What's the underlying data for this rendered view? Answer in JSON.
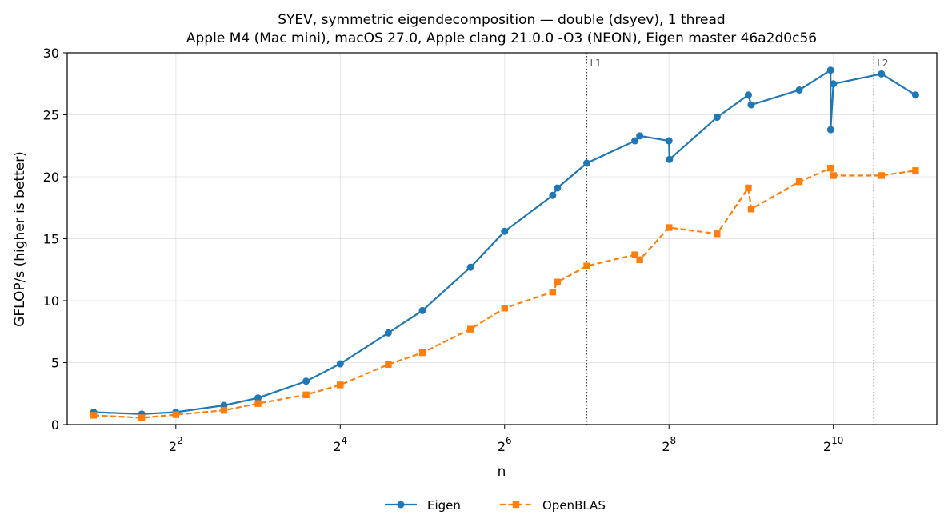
{
  "chart_data": {
    "type": "line",
    "title": "SYEV, symmetric eigendecomposition — double (dsyev), 1 thread",
    "subtitle": "Apple M4 (Mac mini), macOS 27.0, Apple clang 21.0.0 -O3 (NEON), Eigen master 46a2d0c56",
    "xlabel": "n",
    "ylabel": "GFLOP/s (higher is better)",
    "xscale": "log2",
    "xlim": [
      1.6,
      2450
    ],
    "ylim": [
      0,
      30
    ],
    "xticks": [
      {
        "value": 4,
        "base": "2",
        "exp": "2"
      },
      {
        "value": 16,
        "base": "2",
        "exp": "4"
      },
      {
        "value": 64,
        "base": "2",
        "exp": "6"
      },
      {
        "value": 256,
        "base": "2",
        "exp": "8"
      },
      {
        "value": 1024,
        "base": "2",
        "exp": "10"
      }
    ],
    "yticks": [
      0,
      5,
      10,
      15,
      20,
      25,
      30
    ],
    "grid": true,
    "legend": "bottom-center",
    "vlines": [
      {
        "label": "L1",
        "x": 128
      },
      {
        "label": "L2",
        "x": 1440
      }
    ],
    "series": [
      {
        "name": "Eigen",
        "color": "#1f77b4",
        "marker": "circle",
        "linestyle": "solid",
        "x": [
          2,
          3,
          4,
          6,
          8,
          12,
          16,
          24,
          32,
          48,
          64,
          96,
          100,
          128,
          192,
          200,
          256,
          257,
          384,
          500,
          512,
          768,
          1000,
          1001,
          1024,
          1536,
          2048
        ],
        "y": [
          1.0,
          0.85,
          1.0,
          1.55,
          2.15,
          3.5,
          4.9,
          7.4,
          9.2,
          12.7,
          15.6,
          18.5,
          19.1,
          21.1,
          22.9,
          23.3,
          22.9,
          21.4,
          24.8,
          26.6,
          25.8,
          27.0,
          28.6,
          23.8,
          27.5,
          28.3,
          26.6
        ]
      },
      {
        "name": "OpenBLAS",
        "color": "#ff7f0e",
        "marker": "square",
        "linestyle": "dashed",
        "x": [
          2,
          3,
          4,
          6,
          8,
          12,
          16,
          24,
          32,
          48,
          64,
          96,
          100,
          128,
          192,
          200,
          256,
          384,
          500,
          512,
          768,
          1000,
          1024,
          1536,
          2048
        ],
        "y": [
          0.75,
          0.55,
          0.8,
          1.15,
          1.7,
          2.4,
          3.2,
          4.85,
          5.8,
          7.7,
          9.4,
          10.7,
          11.5,
          12.8,
          13.7,
          13.3,
          15.9,
          15.4,
          19.1,
          17.4,
          19.6,
          20.7,
          20.1,
          20.1,
          20.5
        ]
      }
    ]
  }
}
